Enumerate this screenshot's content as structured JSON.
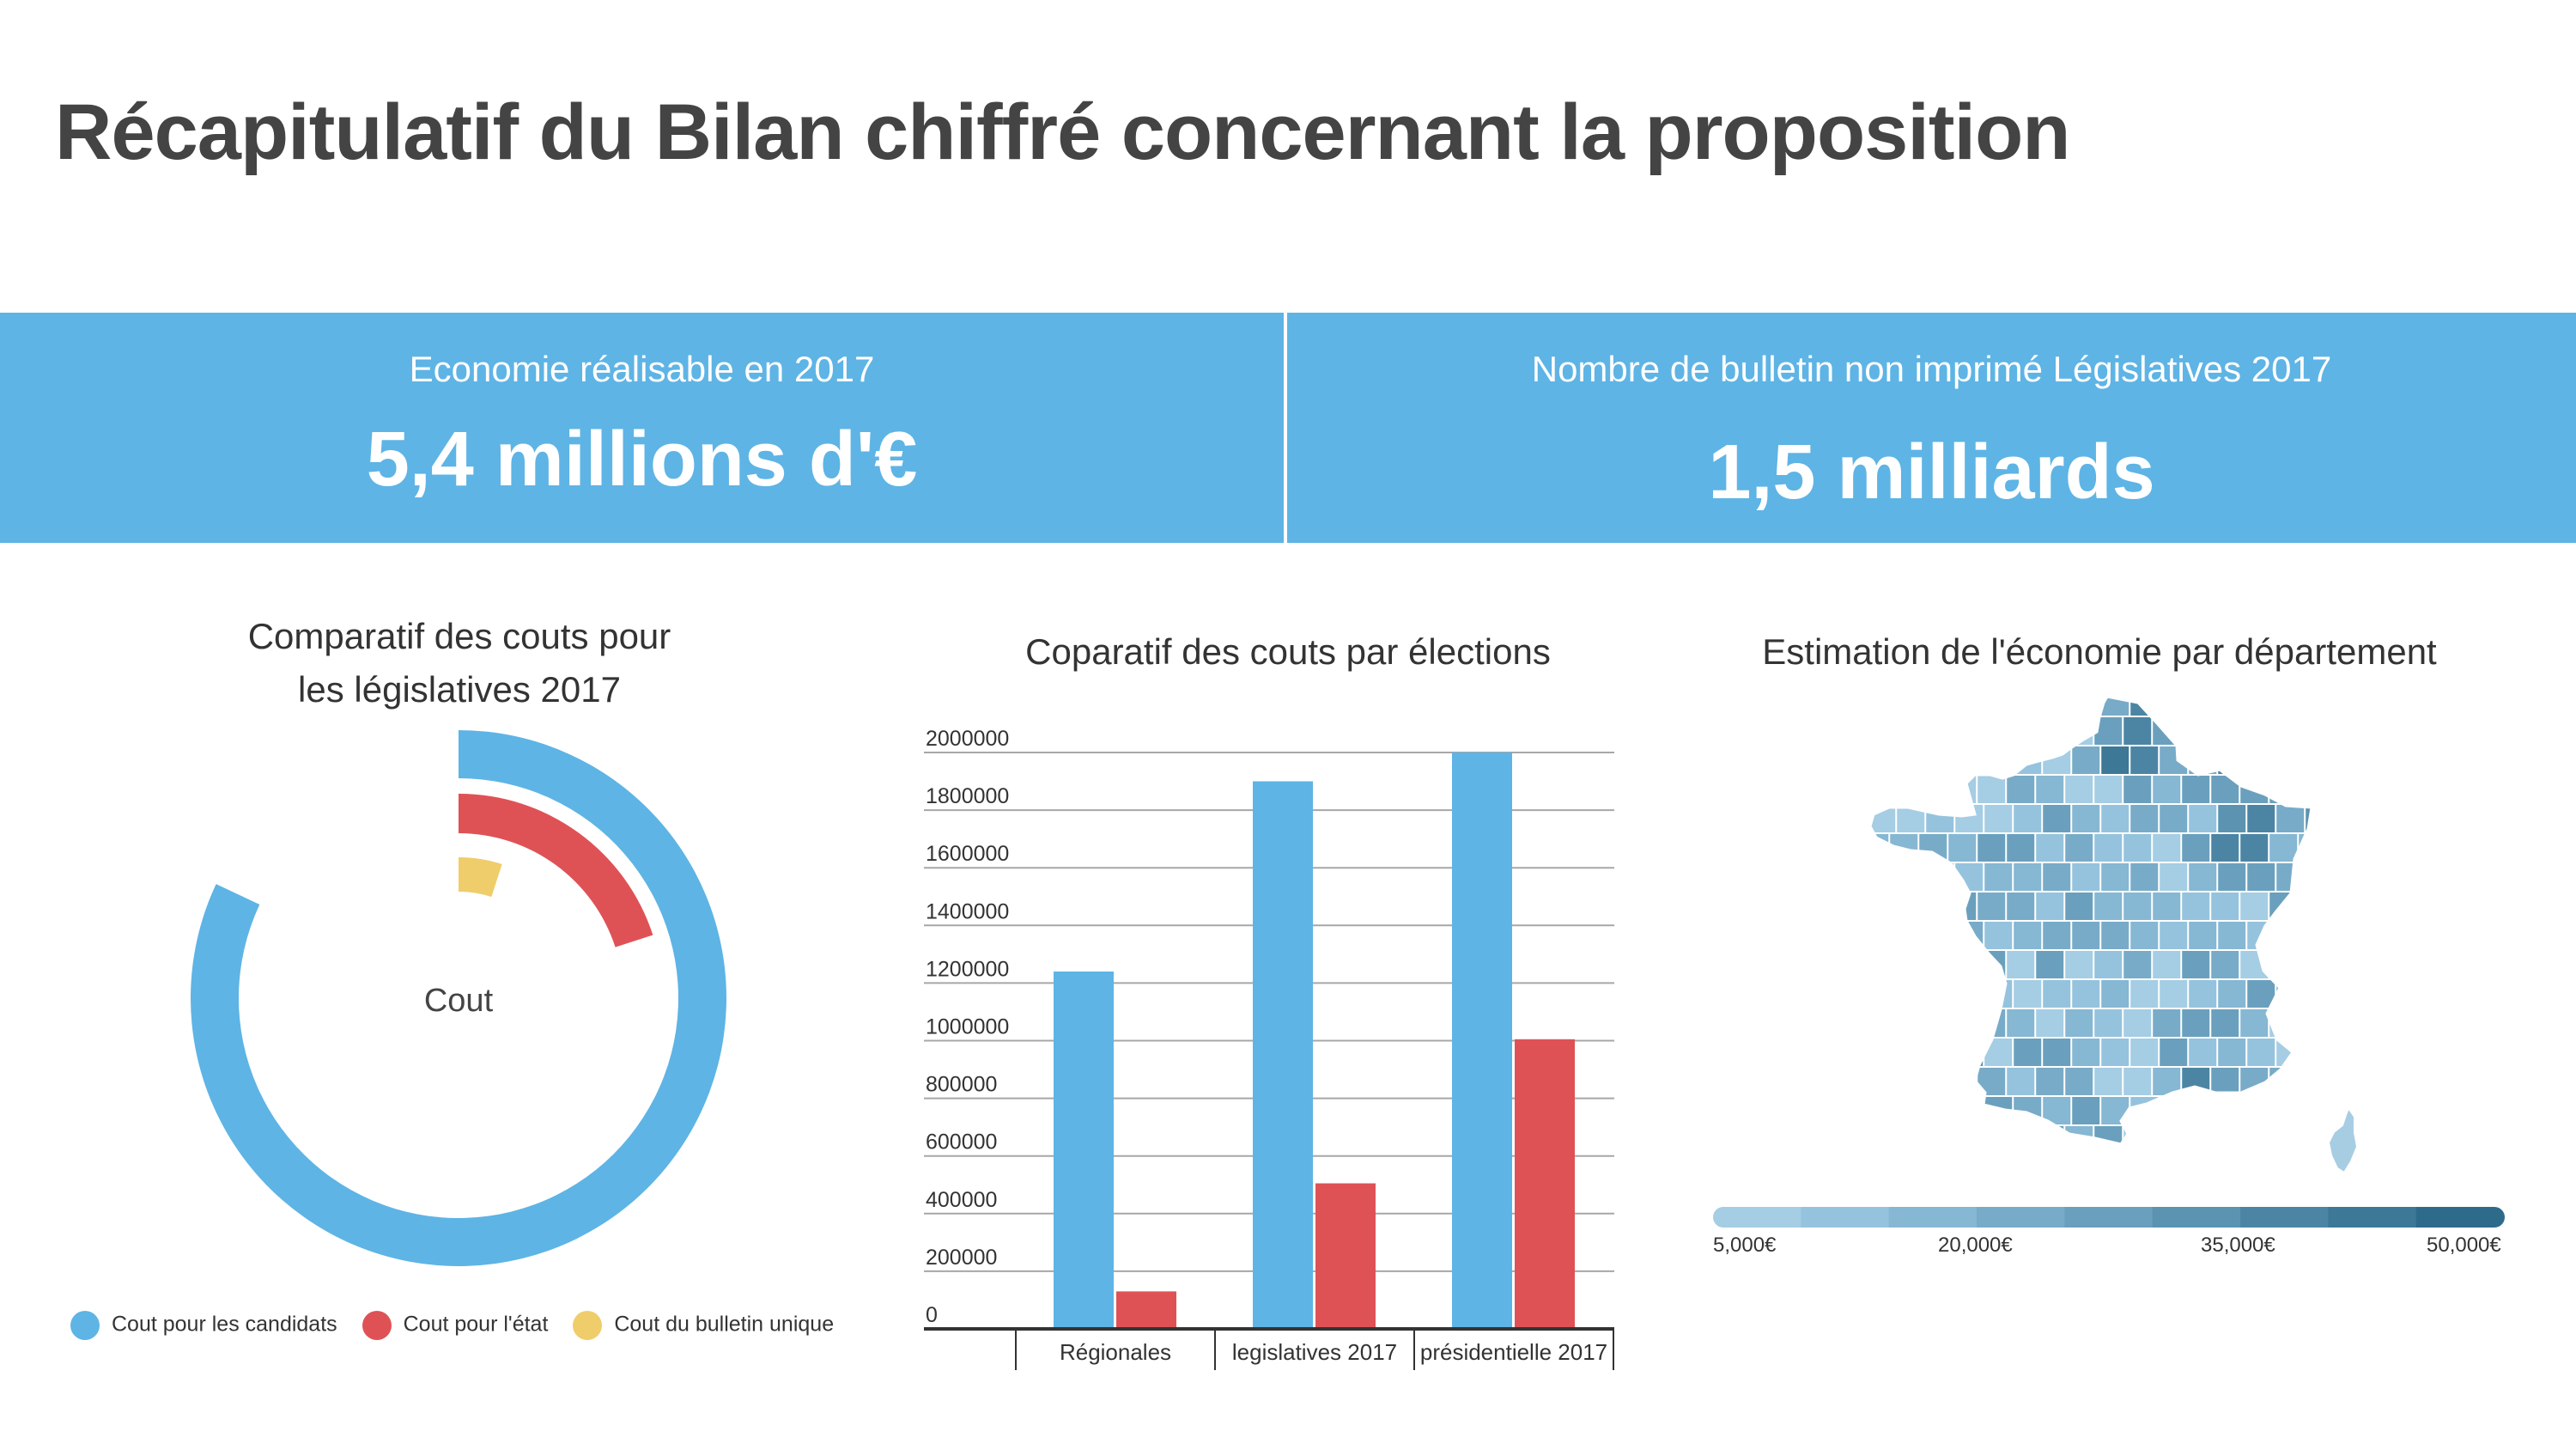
{
  "title": "Récapitulatif du Bilan chiffré concernant la proposition",
  "kpis": [
    {
      "label": "Economie réalisable en 2017",
      "value": "5,4 millions d'€"
    },
    {
      "label": "Nombre de bulletin non imprimé Législatives 2017",
      "value": "1,5 milliards"
    }
  ],
  "colors": {
    "band": "#5eb4e5",
    "blue": "#5eb4e5",
    "red": "#de5256",
    "yellow": "#f0cd6b"
  },
  "chart_data": [
    {
      "type": "pie",
      "title": "Comparatif des couts pour les législatives 2017",
      "title_lines": [
        "Comparatif des couts pour",
        "les législatives 2017"
      ],
      "center_label": "Cout",
      "series": [
        {
          "name": "Cout pour les candidats",
          "value": 0.82,
          "color": "#5eb4e5"
        },
        {
          "name": "Cout pour l'état",
          "value": 0.2,
          "color": "#de5256"
        },
        {
          "name": "Cout du bulletin unique",
          "value": 0.05,
          "color": "#f0cd6b"
        }
      ],
      "legend_position": "bottom"
    },
    {
      "type": "bar",
      "title": "Coparatif des couts par élections",
      "categories": [
        "Régionales",
        "legislatives 2017",
        "présidentielle 2017"
      ],
      "series": [
        {
          "values": [
            1240000,
            1900000,
            2000000
          ],
          "color": "#5eb4e5"
        },
        {
          "values": [
            130000,
            505000,
            1005000
          ],
          "color": "#de5256"
        }
      ],
      "yticks": [
        "0",
        "200000",
        "400000",
        "600000",
        "800000",
        "1000000",
        "1200000",
        "1400000",
        "1600000",
        "1800000",
        "2000000"
      ],
      "ylim": [
        0,
        2000000
      ],
      "grid": true
    },
    {
      "type": "heatmap",
      "title": "Estimation de l'économie par département",
      "scale_labels": [
        "5,000€",
        "20,000€",
        "35,000€",
        "50,000€"
      ],
      "scale_range": [
        5000,
        50000
      ],
      "scale_colors": [
        "#a5cde4",
        "#95c3dd",
        "#86b7d3",
        "#78abc8",
        "#6aa0bd",
        "#5b93b1",
        "#4c85a4",
        "#3d7897",
        "#2e6b8b"
      ]
    }
  ]
}
